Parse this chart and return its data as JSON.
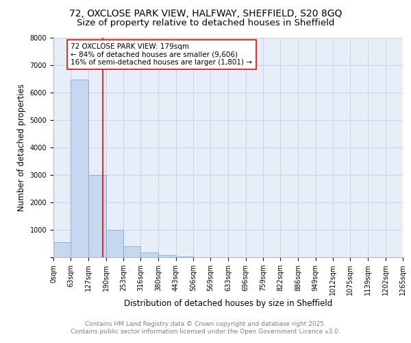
{
  "title_line1": "72, OXCLOSE PARK VIEW, HALFWAY, SHEFFIELD, S20 8GQ",
  "title_line2": "Size of property relative to detached houses in Sheffield",
  "bar_values": [
    550,
    6480,
    3000,
    1000,
    390,
    170,
    80,
    30,
    0,
    0,
    0,
    0,
    0,
    0,
    0,
    0,
    0,
    0,
    0,
    0
  ],
  "bin_edges": [
    0,
    63,
    127,
    190,
    253,
    316,
    380,
    443,
    506,
    569,
    633,
    696,
    759,
    822,
    886,
    949,
    1012,
    1075,
    1139,
    1202,
    1265
  ],
  "x_tick_labels": [
    "0sqm",
    "63sqm",
    "127sqm",
    "190sqm",
    "253sqm",
    "316sqm",
    "380sqm",
    "443sqm",
    "506sqm",
    "569sqm",
    "633sqm",
    "696sqm",
    "759sqm",
    "822sqm",
    "886sqm",
    "949sqm",
    "1012sqm",
    "1075sqm",
    "1139sqm",
    "1202sqm",
    "1265sqm"
  ],
  "ylabel": "Number of detached properties",
  "xlabel": "Distribution of detached houses by size in Sheffield",
  "bar_color": "#c5d8f0",
  "bar_edge_color": "#7bafd4",
  "grid_color": "#c8d4e8",
  "bg_color": "#e8eef8",
  "vline_x": 179,
  "vline_color": "red",
  "annotation_line1": "72 OXCLOSE PARK VIEW: 179sqm",
  "annotation_line2": "← 84% of detached houses are smaller (9,606)",
  "annotation_line3": "16% of semi-detached houses are larger (1,801) →",
  "annotation_box_color": "white",
  "annotation_box_edge": "red",
  "ylim": [
    0,
    8000
  ],
  "yticks": [
    0,
    1000,
    2000,
    3000,
    4000,
    5000,
    6000,
    7000,
    8000
  ],
  "footer_line1": "Contains HM Land Registry data © Crown copyright and database right 2025.",
  "footer_line2": "Contains public sector information licensed under the Open Government Licence v3.0.",
  "title_fontsize": 10,
  "subtitle_fontsize": 9.5,
  "axis_label_fontsize": 8.5,
  "tick_fontsize": 7,
  "annotation_fontsize": 7.5,
  "footer_fontsize": 6.5
}
